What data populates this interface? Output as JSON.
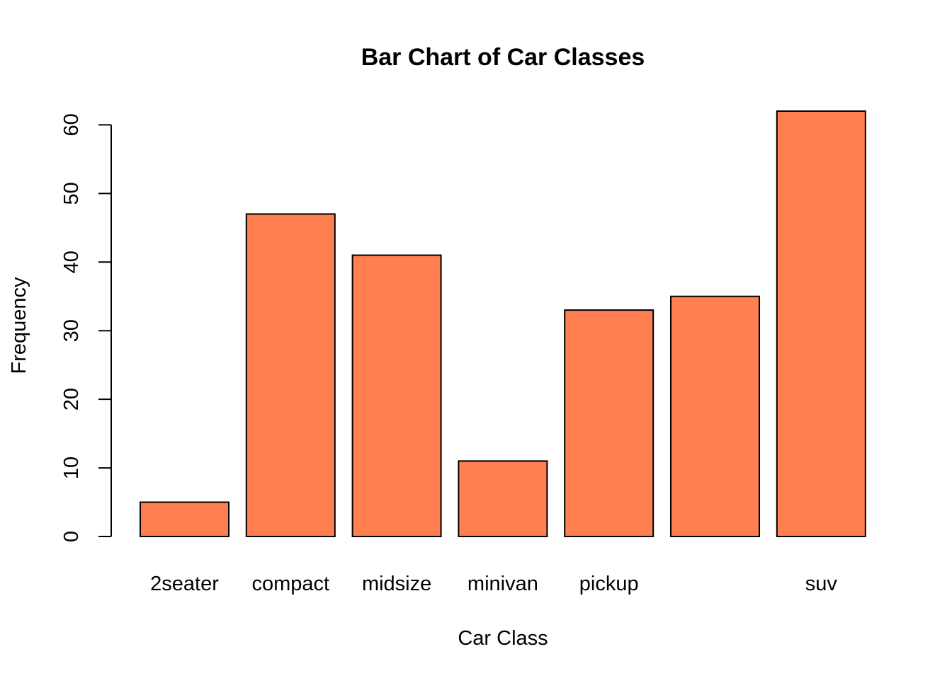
{
  "chart_data": {
    "type": "bar",
    "title": "Bar Chart of Car Classes",
    "xlabel": "Car Class",
    "ylabel": "Frequency",
    "categories": [
      "2seater",
      "compact",
      "midsize",
      "minivan",
      "pickup",
      "",
      "suv"
    ],
    "values": [
      5,
      47,
      41,
      11,
      33,
      35,
      62
    ],
    "ylim": [
      0,
      62
    ],
    "yticks": [
      0,
      10,
      20,
      30,
      40,
      50,
      60
    ],
    "bar_color": "#FF7F50",
    "grid": false,
    "legend": "none"
  }
}
